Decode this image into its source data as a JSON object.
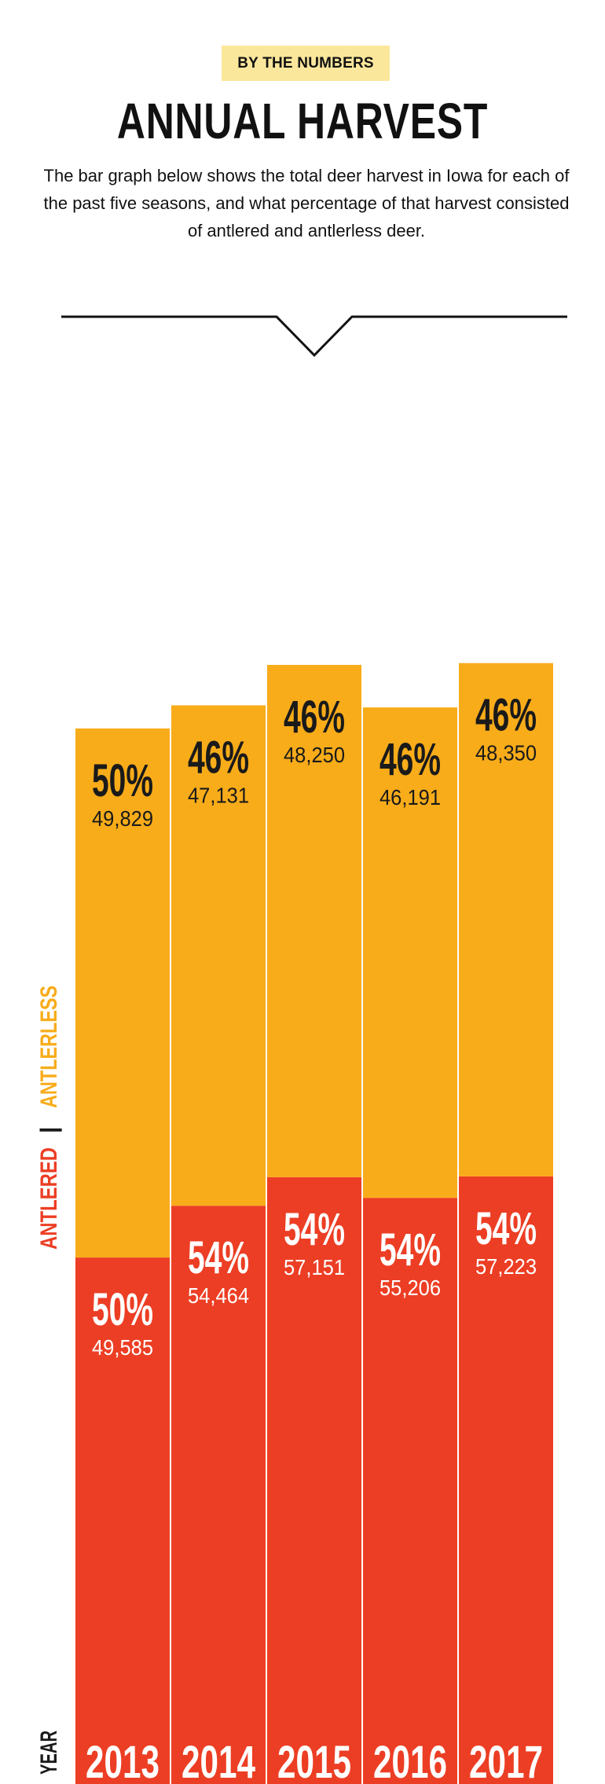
{
  "header": {
    "badge": "BY THE NUMBERS",
    "title": "ANNUAL HARVEST",
    "intro": "The bar graph below shows the total deer harvest in Iowa for each of the past five seasons, and what percentage of that harvest consisted of antlered and antlerless deer."
  },
  "colors": {
    "antlered": "#ec3e24",
    "antlerless": "#f8ac1a",
    "badge_bg": "#fbe79b",
    "text_dark": "#1a1a1a",
    "text_light": "#ffffff"
  },
  "chart_data": {
    "type": "bar",
    "stacked": true,
    "categories": [
      "2013",
      "2014",
      "2015",
      "2016",
      "2017"
    ],
    "xlabel": "YEAR",
    "legend": [
      "ANTLERED",
      "ANTLERLESS"
    ],
    "legend_separator": "|",
    "series": [
      {
        "name": "ANTLERED",
        "values": [
          49585,
          54464,
          57151,
          55206,
          57223
        ],
        "labels": [
          "49,585",
          "54,464",
          "57,151",
          "55,206",
          "57,223"
        ],
        "percent_labels": [
          "50%",
          "54%",
          "54%",
          "54%",
          "54%"
        ]
      },
      {
        "name": "ANTLERLESS",
        "values": [
          49829,
          47131,
          48250,
          46191,
          48350
        ],
        "labels": [
          "49,829",
          "47,131",
          "48,250",
          "46,191",
          "48,350"
        ],
        "percent_labels": [
          "50%",
          "46%",
          "46%",
          "46%",
          "46%"
        ]
      }
    ]
  }
}
